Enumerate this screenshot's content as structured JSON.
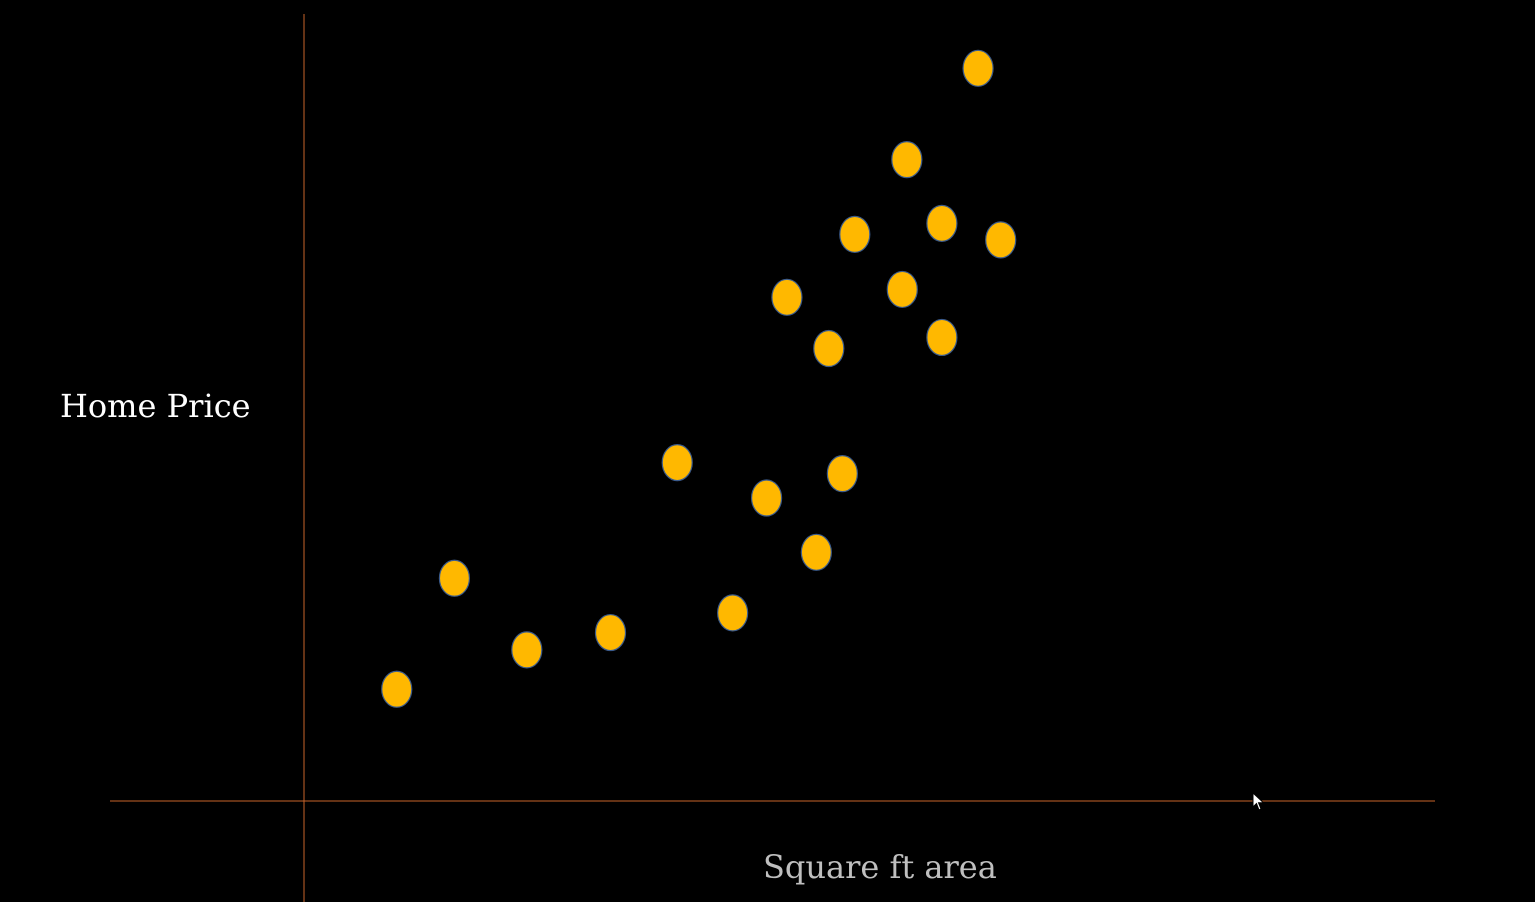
{
  "chart_data": {
    "type": "scatter",
    "title": "",
    "xlabel": "Square ft area",
    "ylabel": "Home Price",
    "grid": false,
    "xlim": [
      0,
      100
    ],
    "ylim": [
      0,
      100
    ],
    "points": [
      {
        "x": 8.2,
        "y": 14.2
      },
      {
        "x": 13.3,
        "y": 28.3
      },
      {
        "x": 19.7,
        "y": 19.2
      },
      {
        "x": 27.1,
        "y": 21.4
      },
      {
        "x": 33.0,
        "y": 43.0
      },
      {
        "x": 37.9,
        "y": 23.9
      },
      {
        "x": 40.9,
        "y": 38.5
      },
      {
        "x": 42.7,
        "y": 64.0
      },
      {
        "x": 45.3,
        "y": 31.6
      },
      {
        "x": 46.4,
        "y": 57.5
      },
      {
        "x": 47.6,
        "y": 41.6
      },
      {
        "x": 48.7,
        "y": 72.0
      },
      {
        "x": 52.9,
        "y": 65.0
      },
      {
        "x": 53.3,
        "y": 81.5
      },
      {
        "x": 56.4,
        "y": 58.9
      },
      {
        "x": 56.4,
        "y": 73.4
      },
      {
        "x": 59.6,
        "y": 93.1
      },
      {
        "x": 61.6,
        "y": 71.3
      }
    ],
    "colors": {
      "point_fill": "#FFB800",
      "point_stroke": "#3B5B8C",
      "axis": "#C8642A"
    }
  }
}
